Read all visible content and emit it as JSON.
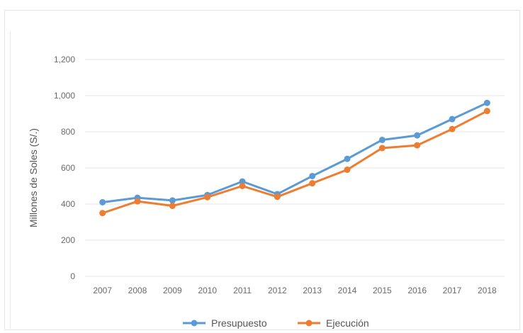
{
  "chart_data": {
    "type": "line",
    "title": "",
    "xlabel": "",
    "ylabel": "Millones de Soles (S/.)",
    "ylim": [
      0,
      1200
    ],
    "yticks": [
      0,
      200,
      400,
      600,
      800,
      1000,
      1200
    ],
    "ytick_labels": [
      "0",
      "200",
      "400",
      "600",
      "800",
      "1,000",
      "1,200"
    ],
    "categories": [
      "2007",
      "2008",
      "2009",
      "2010",
      "2011",
      "2012",
      "2013",
      "2014",
      "2015",
      "2016",
      "2017",
      "2018"
    ],
    "grid": true,
    "legend_position": "bottom",
    "series": [
      {
        "name": "Presupuesto",
        "color": "#5b9bd5",
        "values": [
          410,
          435,
          420,
          450,
          525,
          455,
          555,
          650,
          755,
          780,
          870,
          960
        ]
      },
      {
        "name": "Ejecución",
        "color": "#ed7d31",
        "values": [
          350,
          415,
          390,
          438,
          500,
          440,
          515,
          590,
          710,
          725,
          815,
          915
        ]
      }
    ]
  }
}
